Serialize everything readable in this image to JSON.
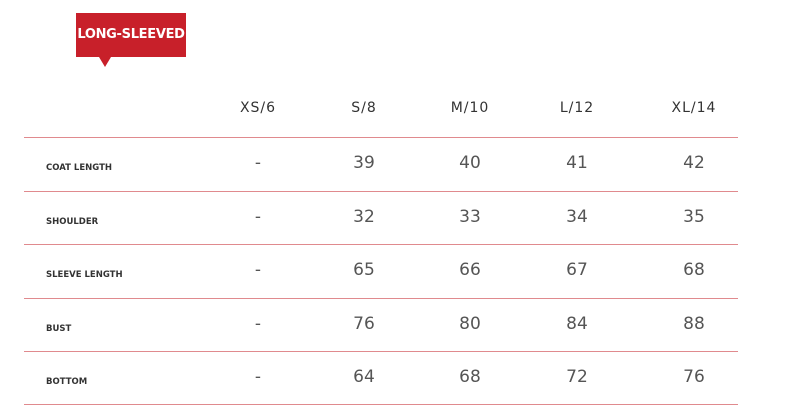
{
  "badge": "LONG-SLEEVED",
  "columns": [
    "XS/6",
    "S/8",
    "M/10",
    "L/12",
    "XL/14"
  ],
  "rows": [
    {
      "label": "COAT LENGTH",
      "values": [
        "-",
        "39",
        "40",
        "41",
        "42"
      ]
    },
    {
      "label": "SHOULDER",
      "values": [
        "-",
        "32",
        "33",
        "34",
        "35"
      ]
    },
    {
      "label": "SLEEVE LENGTH",
      "values": [
        "-",
        "65",
        "66",
        "67",
        "68"
      ]
    },
    {
      "label": "BUST",
      "values": [
        "-",
        "76",
        "80",
        "84",
        "88"
      ]
    },
    {
      "label": "BOTTOM",
      "values": [
        "-",
        "64",
        "68",
        "72",
        "76"
      ]
    }
  ],
  "colors": {
    "accent": "#c8202a",
    "divider": "#e08a8e"
  }
}
